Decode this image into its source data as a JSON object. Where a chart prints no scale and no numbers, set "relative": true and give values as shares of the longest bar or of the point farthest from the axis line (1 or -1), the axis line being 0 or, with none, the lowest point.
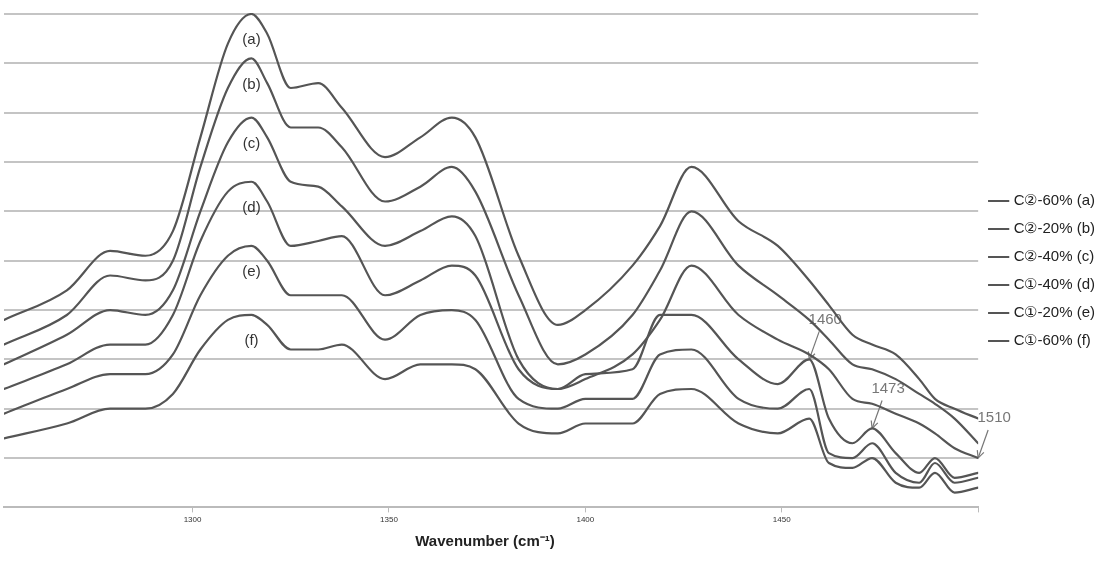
{
  "chart_data": {
    "type": "line",
    "relative": true,
    "xlabel": "Wavenumber (cm⁻¹)",
    "x": [
      1252,
      1268,
      1279,
      1288,
      1295,
      1302,
      1309,
      1315,
      1319,
      1325,
      1332,
      1338,
      1349,
      1358,
      1366,
      1372,
      1383,
      1393,
      1400,
      1412,
      1419,
      1427,
      1439,
      1449,
      1457,
      1462,
      1468,
      1473,
      1479,
      1485,
      1489,
      1494,
      1500
    ],
    "xlim": [
      1252,
      1500
    ],
    "xticks": [
      1300,
      1350,
      1400,
      1450,
      {
        "value": 1500,
        "label": null
      }
    ],
    "grid": "y",
    "legend": "right",
    "marker": "none",
    "line_style": "solid",
    "series": [
      {
        "name": "C②-60% (a)",
        "color": "#555555",
        "values": [
          0.38,
          0.44,
          0.52,
          0.51,
          0.56,
          0.75,
          0.94,
          1,
          0.96,
          0.85,
          0.86,
          0.81,
          0.71,
          0.75,
          0.79,
          0.75,
          0.51,
          0.37,
          0.4,
          0.49,
          0.57,
          0.69,
          0.58,
          0.53,
          0.46,
          0.41,
          0.35,
          0.33,
          0.31,
          0.26,
          0.22,
          0.2,
          0.18
        ]
      },
      {
        "name": "C②-20% (b)",
        "color": "#555555",
        "values": [
          0.33,
          0.39,
          0.47,
          0.46,
          0.5,
          0.69,
          0.85,
          0.91,
          0.86,
          0.77,
          0.77,
          0.73,
          0.62,
          0.65,
          0.69,
          0.64,
          0.43,
          0.29,
          0.31,
          0.39,
          0.48,
          0.6,
          0.49,
          0.43,
          0.38,
          0.34,
          0.29,
          0.28,
          0.26,
          0.23,
          0.21,
          0.18,
          0.13
        ]
      },
      {
        "name": "C②-40% (c)",
        "color": "#555555",
        "values": [
          0.29,
          0.35,
          0.4,
          0.39,
          0.44,
          0.6,
          0.74,
          0.79,
          0.75,
          0.66,
          0.65,
          0.61,
          0.53,
          0.56,
          0.59,
          0.55,
          0.3,
          0.24,
          0.26,
          0.31,
          0.38,
          0.49,
          0.39,
          0.34,
          0.31,
          0.28,
          0.22,
          0.21,
          0.19,
          0.17,
          0.15,
          0.12,
          0.1
        ]
      },
      {
        "name": "C①-40% (d)",
        "color": "#555555",
        "values": [
          0.24,
          0.29,
          0.33,
          0.33,
          0.39,
          0.54,
          0.64,
          0.66,
          0.62,
          0.53,
          0.54,
          0.55,
          0.43,
          0.46,
          0.49,
          0.47,
          0.28,
          0.24,
          0.27,
          0.28,
          0.39,
          0.39,
          0.3,
          0.25,
          0.3,
          0.18,
          0.13,
          0.16,
          0.11,
          0.07,
          0.1,
          0.06,
          0.07
        ]
      },
      {
        "name": "C①-20% (e)",
        "color": "#555555",
        "values": [
          0.19,
          0.24,
          0.27,
          0.27,
          0.31,
          0.43,
          0.51,
          0.53,
          0.5,
          0.43,
          0.43,
          0.43,
          0.34,
          0.39,
          0.4,
          0.38,
          0.22,
          0.2,
          0.22,
          0.22,
          0.31,
          0.32,
          0.22,
          0.2,
          0.24,
          0.11,
          0.1,
          0.13,
          0.07,
          0.05,
          0.09,
          0.05,
          0.06
        ]
      },
      {
        "name": "C①-60% (f)",
        "color": "#555555",
        "values": [
          0.14,
          0.17,
          0.2,
          0.2,
          0.23,
          0.32,
          0.38,
          0.39,
          0.37,
          0.32,
          0.32,
          0.33,
          0.26,
          0.29,
          0.29,
          0.28,
          0.17,
          0.15,
          0.17,
          0.17,
          0.23,
          0.24,
          0.17,
          0.15,
          0.18,
          0.09,
          0.08,
          0.1,
          0.05,
          0.04,
          0.07,
          0.03,
          0.04
        ]
      }
    ],
    "annotations": [
      "(a)",
      "(b)",
      "(c)",
      "(d)",
      "(e)",
      "(f)",
      {
        "text": "1460",
        "x": 1457,
        "y": 0.3
      },
      {
        "text": "1473",
        "x": 1473,
        "y": 0.16
      },
      {
        "text": "1510",
        "x": 1500,
        "y": 0.1
      }
    ]
  }
}
